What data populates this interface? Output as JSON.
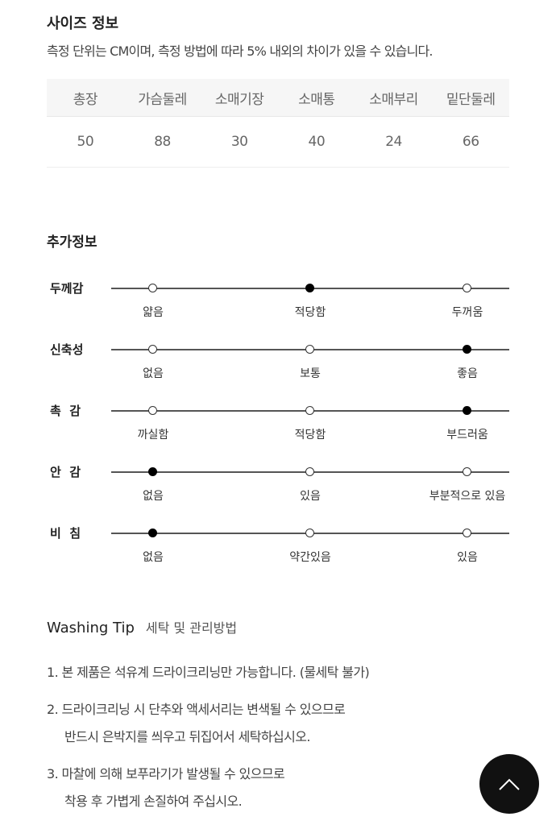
{
  "size_info": {
    "title": "사이즈 정보",
    "note": "측정 단위는 CM이며, 측정 방법에 따라 5% 내외의 차이가 있을 수 있습니다.",
    "headers": [
      "총장",
      "가슴둘레",
      "소매기장",
      "소매통",
      "소매부리",
      "밑단둘레"
    ],
    "values": [
      "50",
      "88",
      "30",
      "40",
      "24",
      "66"
    ]
  },
  "extra_info": {
    "title": "추가정보",
    "rows": [
      {
        "label": "두께감",
        "options": [
          "얇음",
          "적당함",
          "두꺼움"
        ],
        "selected": 1
      },
      {
        "label": "신축성",
        "options": [
          "없음",
          "보통",
          "좋음"
        ],
        "selected": 2
      },
      {
        "label": "촉  감",
        "options": [
          "까실함",
          "적당함",
          "부드러움"
        ],
        "selected": 2
      },
      {
        "label": "안  감",
        "options": [
          "없음",
          "있음",
          "부분적으로 있음"
        ],
        "selected": 0
      },
      {
        "label": "비  침",
        "options": [
          "없음",
          "약간있음",
          "있음"
        ],
        "selected": 0
      }
    ]
  },
  "washing": {
    "title": "Washing Tip",
    "subtitle": "세탁 및 관리방법",
    "items": [
      [
        "1. 본 제품은 석유계 드라이크리닝만 가능합니다. (물세탁 불가)"
      ],
      [
        "2. 드라이크리닝 시 단추와 액세서리는 변색될 수 있으므로",
        "반드시 은박지를 씌우고 뒤집어서 세탁하십시오."
      ],
      [
        "3. 마찰에 의해 보푸라기가 발생될 수 있으므로",
        "착용 후 가볍게 손질하여 주십시오."
      ]
    ]
  },
  "scroll_top": {
    "icon": "chevron-up-icon"
  }
}
